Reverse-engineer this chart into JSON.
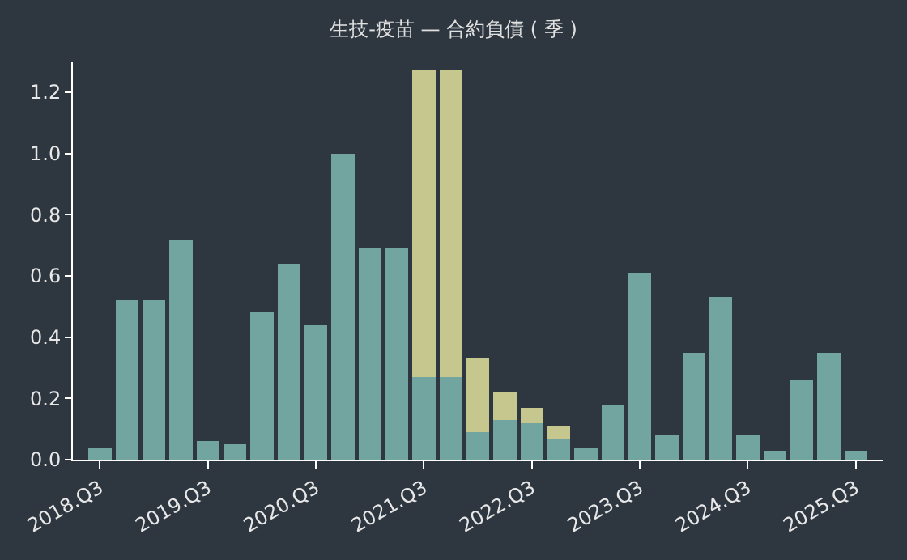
{
  "chart_data": {
    "type": "bar",
    "title": "生技-疫苗 — 合約負債 ( 季 )",
    "stacked": true,
    "categories": [
      "2018.Q3",
      null,
      null,
      null,
      "2019.Q3",
      null,
      null,
      null,
      "2020.Q3",
      null,
      null,
      null,
      "2021.Q3",
      null,
      null,
      null,
      "2022.Q3",
      null,
      null,
      null,
      "2023.Q3",
      null,
      null,
      null,
      "2024.Q3",
      null,
      null,
      null,
      "2025.Q3"
    ],
    "series": [
      {
        "color": "#73a5a0",
        "values": [
          0.04,
          0.52,
          0.52,
          0.72,
          0.06,
          0.05,
          0.48,
          0.64,
          0.44,
          1.0,
          0.69,
          0.69,
          0.27,
          0.27,
          0.09,
          0.13,
          0.12,
          0.07,
          0.04,
          0.18,
          0.61,
          0.08,
          0.35,
          0.53,
          0.08,
          0.03,
          0.26,
          0.35,
          0.03
        ]
      },
      {
        "color": "#c5c78f",
        "values": [
          null,
          null,
          null,
          null,
          null,
          null,
          null,
          null,
          null,
          null,
          null,
          null,
          1.0,
          1.0,
          0.24,
          0.09,
          0.05,
          0.04,
          null,
          null,
          null,
          null,
          null,
          null,
          null,
          null,
          null,
          null,
          null
        ]
      }
    ],
    "ylim": [
      0,
      1.3
    ],
    "yticks": [
      {
        "value": 0,
        "label": "0.0"
      },
      0.2,
      0.4,
      0.6,
      0.8,
      {
        "value": 1,
        "label": "1.0"
      },
      1.2
    ],
    "grid": false
  }
}
